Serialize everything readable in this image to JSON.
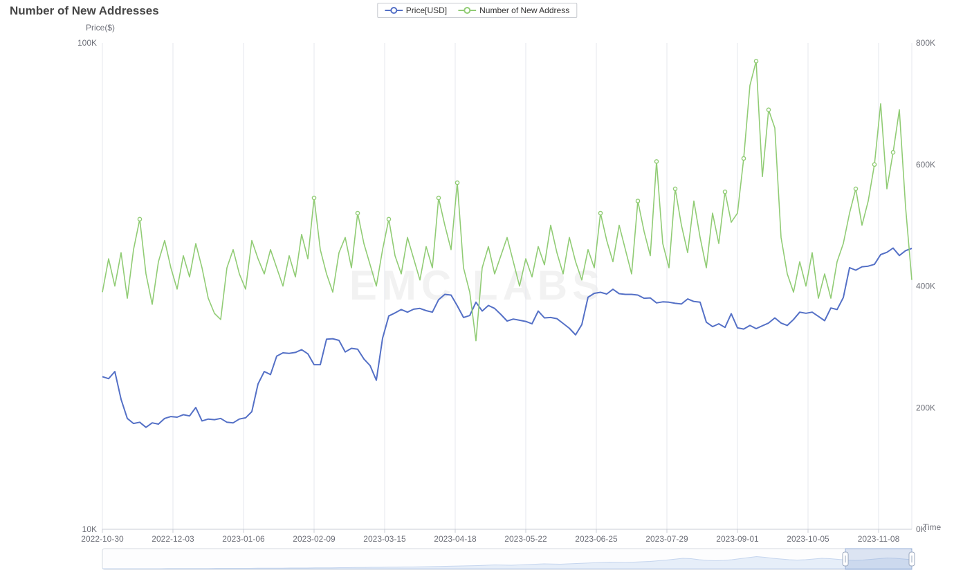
{
  "title": "Number of New Addresses",
  "watermark": "EMC LABS",
  "legend": [
    {
      "label": "Price[USD]",
      "color": "#5470c6"
    },
    {
      "label": "Number of New Address",
      "color": "#91cc75"
    }
  ],
  "chart_data": {
    "type": "line",
    "title": "Number of New Addresses",
    "grid": "vertical-only",
    "legend_position": "top-center",
    "x": {
      "name": "Time",
      "start_date": "2022-10-30",
      "interval_days": 3,
      "tick_labels": [
        "2022-10-30",
        "2022-12-03",
        "2023-01-06",
        "2023-02-09",
        "2023-03-15",
        "2023-04-18",
        "2023-05-22",
        "2023-06-25",
        "2023-07-29",
        "2023-09-01",
        "2023-10-05",
        "2023-11-08"
      ]
    },
    "y_left": {
      "name": "Price($)",
      "scale": "log",
      "min": 10000,
      "max": 100000,
      "tick_values": [
        100000,
        10000
      ],
      "tick_labels": [
        "100K",
        "10K"
      ]
    },
    "y_right": {
      "name": "",
      "scale": "linear",
      "min": 0,
      "max": 800000,
      "tick_values": [
        800000,
        600000,
        400000,
        200000,
        0
      ],
      "tick_labels": [
        "800K",
        "600K",
        "400K",
        "200K",
        "0K"
      ]
    },
    "series": [
      {
        "name": "Price[USD]",
        "axis": "left",
        "color": "#5470c6",
        "values": [
          20600,
          20400,
          21100,
          18500,
          16900,
          16500,
          16600,
          16200,
          16550,
          16450,
          16900,
          17050,
          17000,
          17200,
          17100,
          17800,
          16700,
          16850,
          16800,
          16900,
          16600,
          16550,
          16850,
          16950,
          17450,
          19900,
          21100,
          20800,
          22700,
          23050,
          23000,
          23100,
          23400,
          22950,
          21800,
          21800,
          24600,
          24650,
          24450,
          23150,
          23550,
          23450,
          22400,
          21700,
          20250,
          24700,
          27450,
          27850,
          28300,
          27950,
          28350,
          28450,
          28150,
          27950,
          29650,
          30400,
          30300,
          28800,
          27250,
          27500,
          29300,
          28100,
          28850,
          28450,
          27650,
          26800,
          27050,
          26900,
          26750,
          26450,
          28100,
          27200,
          27250,
          27100,
          26500,
          25900,
          25100,
          26350,
          30000,
          30550,
          30700,
          30450,
          31150,
          30500,
          30400,
          30400,
          30300,
          29850,
          29900,
          29200,
          29350,
          29300,
          29150,
          29050,
          29750,
          29400,
          29300,
          26650,
          26100,
          26450,
          26000,
          27750,
          25950,
          25800,
          26250,
          25850,
          26200,
          26550,
          27200,
          26550,
          26250,
          27000,
          27950,
          27800,
          27950,
          27400,
          26850,
          28500,
          28300,
          29950,
          34500,
          34100,
          34650,
          34750,
          35050,
          36700,
          37100,
          37850,
          36550,
          37400,
          37800
        ]
      },
      {
        "name": "Number of New Address",
        "axis": "right",
        "color": "#91cc75",
        "values": [
          390000,
          445000,
          400000,
          455000,
          380000,
          460000,
          510000,
          420000,
          370000,
          440000,
          475000,
          430000,
          395000,
          450000,
          415000,
          470000,
          430000,
          380000,
          355000,
          345000,
          430000,
          460000,
          420000,
          395000,
          475000,
          445000,
          420000,
          460000,
          430000,
          400000,
          450000,
          415000,
          485000,
          445000,
          545000,
          460000,
          420000,
          390000,
          455000,
          480000,
          430000,
          520000,
          470000,
          435000,
          400000,
          460000,
          510000,
          450000,
          420000,
          480000,
          445000,
          410000,
          465000,
          430000,
          545000,
          500000,
          460000,
          570000,
          430000,
          390000,
          310000,
          430000,
          465000,
          420000,
          450000,
          480000,
          440000,
          400000,
          445000,
          415000,
          465000,
          435000,
          500000,
          455000,
          420000,
          480000,
          440000,
          410000,
          460000,
          430000,
          520000,
          475000,
          440000,
          500000,
          460000,
          420000,
          540000,
          490000,
          450000,
          605000,
          470000,
          430000,
          560000,
          500000,
          455000,
          540000,
          480000,
          430000,
          520000,
          470000,
          555000,
          505000,
          520000,
          610000,
          730000,
          770000,
          580000,
          690000,
          660000,
          480000,
          420000,
          390000,
          440000,
          400000,
          455000,
          380000,
          420000,
          380000,
          440000,
          470000,
          520000,
          560000,
          500000,
          540000,
          600000,
          700000,
          560000,
          620000,
          690000,
          530000,
          410000
        ]
      }
    ],
    "datazoom": {
      "window_start_pct": 91.8,
      "window_end_pct": 100,
      "shadow_values": [
        0,
        0,
        0,
        0,
        0,
        0,
        0,
        0,
        1,
        1,
        1,
        1,
        1,
        1,
        2,
        2,
        2,
        2,
        2,
        3,
        3,
        3,
        3,
        4,
        4,
        4,
        5,
        5,
        5,
        6,
        6,
        7,
        7,
        8,
        8,
        9,
        9,
        10,
        10,
        11,
        12,
        13,
        14,
        15,
        16,
        17,
        18,
        20,
        22,
        21,
        20,
        22,
        24,
        26,
        28,
        27,
        26,
        28,
        30,
        32,
        34,
        36,
        38,
        37,
        36,
        38,
        40,
        42,
        46,
        50,
        55,
        60,
        58,
        52,
        48,
        46,
        48,
        52,
        58,
        64,
        70,
        66,
        60,
        56,
        52,
        50,
        52,
        56,
        60,
        58,
        54,
        50,
        48,
        50,
        54,
        58,
        62,
        60,
        56,
        52
      ]
    }
  }
}
